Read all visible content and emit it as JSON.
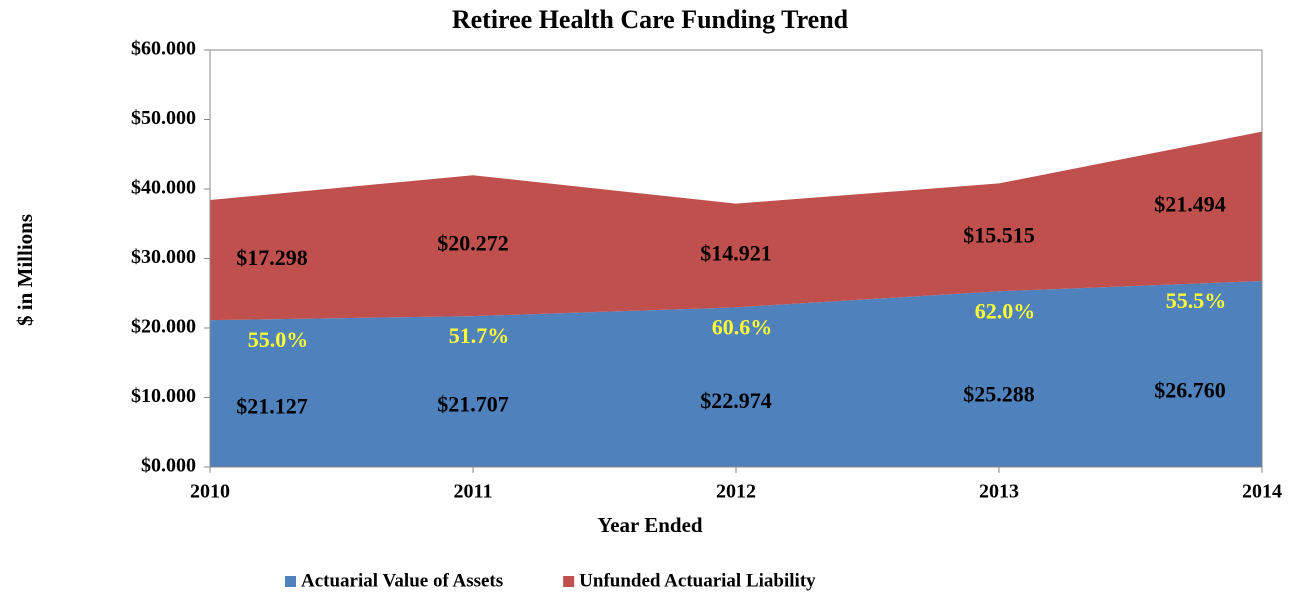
{
  "chart_data": {
    "type": "stacked_area",
    "title": "Retiree Health Care Funding Trend",
    "x_label": "Year Ended",
    "y_label": "$ in Millions",
    "x": [
      2010,
      2011,
      2012,
      2013,
      2014
    ],
    "xlim": [
      2010,
      2014
    ],
    "ylim": [
      0,
      60
    ],
    "yticks": [
      {
        "value": 0,
        "label": "$0.000"
      },
      {
        "value": 10,
        "label": "$10.000"
      },
      {
        "value": 20,
        "label": "$20.000"
      },
      {
        "value": 30,
        "label": "$30.000"
      },
      {
        "value": 40,
        "label": "$40.000"
      },
      {
        "value": 50,
        "label": "$50.000"
      },
      {
        "value": 60,
        "label": "$60.000"
      }
    ],
    "series": [
      {
        "name": "Actuarial Value of Assets",
        "color": "#4f81bd",
        "values": [
          21.127,
          21.707,
          22.974,
          25.288,
          26.76
        ],
        "value_labels": [
          "$21.127",
          "$21.707",
          "$22.974",
          "$25.288",
          "$26.760"
        ]
      },
      {
        "name": "Unfunded Actuarial Liability",
        "color": "#c0504d",
        "values": [
          17.298,
          20.272,
          14.921,
          15.515,
          21.494
        ],
        "value_labels": [
          "$17.298",
          "$20.272",
          "$14.921",
          "$15.515",
          "$21.494"
        ]
      }
    ],
    "annotations": [
      "55.0%",
      "51.7%",
      "60.6%",
      "62.0%",
      "55.5%"
    ],
    "annotation_color": "#ffff33",
    "legend": "bottom"
  }
}
